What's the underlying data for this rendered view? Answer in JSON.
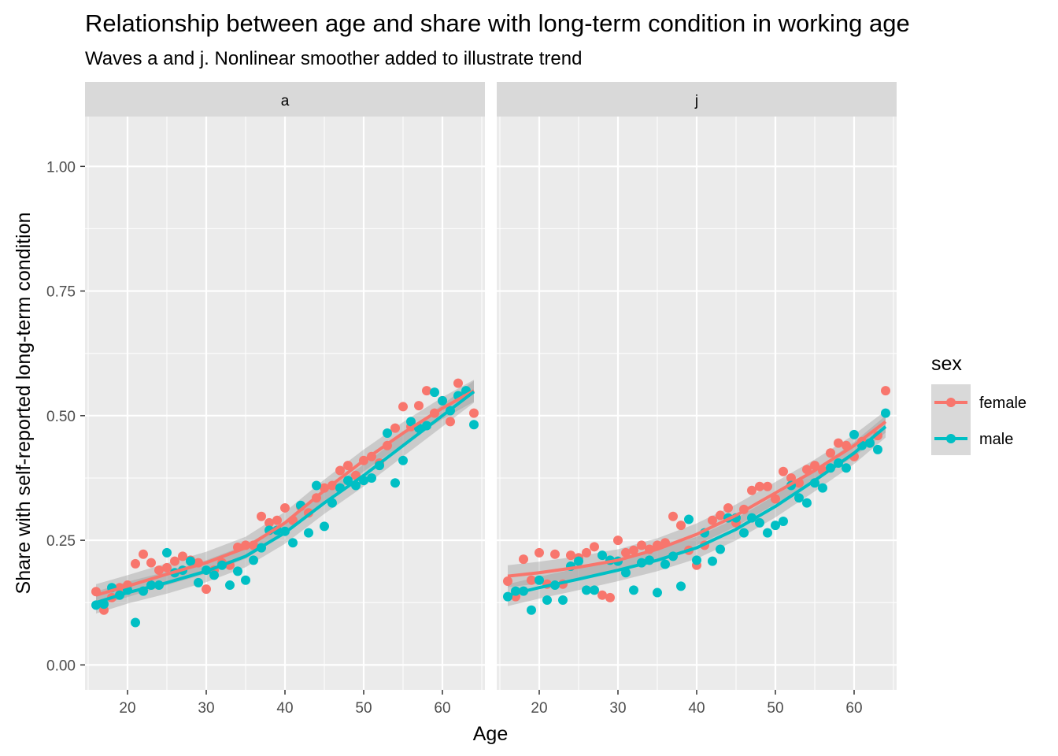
{
  "chart_data": {
    "type": "scatter",
    "title": "Relationship between age and share with long-term condition in working age",
    "subtitle": "Waves a and j. Nonlinear smoother added to illustrate trend",
    "xlabel": "Age",
    "ylabel": "Share with self-reported long-term condition",
    "xlim": [
      14.6,
      65.4
    ],
    "ylim": [
      -0.05,
      1.1
    ],
    "x_ticks": [
      20,
      30,
      40,
      50,
      60
    ],
    "x_tick_labels": [
      "20",
      "30",
      "40",
      "50",
      "60"
    ],
    "y_ticks": [
      0,
      0.25,
      0.5,
      0.75,
      1.0
    ],
    "y_tick_labels": [
      "0.00",
      "0.25",
      "0.50",
      "0.75",
      "1.00"
    ],
    "grid": true,
    "legend": {
      "title": "sex",
      "position": "right",
      "entries": [
        {
          "label": "female",
          "color": "#F8766D"
        },
        {
          "label": "male",
          "color": "#00BFC4"
        }
      ]
    },
    "colors": {
      "female": "#F8766D",
      "male": "#00BFC4",
      "panel_bg": "#EBEBEB",
      "strip_bg": "#D9D9D9",
      "band": "#999999"
    },
    "facets": [
      {
        "label": "a",
        "series": [
          {
            "name": "female",
            "x": [
              16,
              17,
              18,
              19,
              20,
              21,
              22,
              23,
              24,
              25,
              26,
              27,
              28,
              29,
              30,
              31,
              32,
              33,
              34,
              35,
              36,
              37,
              38,
              39,
              40,
              41,
              42,
              43,
              44,
              45,
              46,
              47,
              48,
              49,
              50,
              51,
              52,
              53,
              54,
              55,
              56,
              57,
              58,
              59,
              60,
              61,
              62,
              63,
              64
            ],
            "y": [
              0.147,
              0.11,
              0.135,
              0.155,
              0.16,
              0.203,
              0.222,
              0.205,
              0.19,
              0.195,
              0.208,
              0.218,
              0.21,
              0.205,
              0.152,
              0.19,
              0.205,
              0.2,
              0.236,
              0.24,
              0.24,
              0.298,
              0.285,
              0.29,
              0.315,
              0.29,
              0.318,
              0.305,
              0.335,
              0.355,
              0.36,
              0.39,
              0.4,
              0.38,
              0.41,
              0.418,
              0.405,
              0.44,
              0.475,
              0.518,
              0.478,
              0.52,
              0.55,
              0.505,
              0.53,
              0.488,
              0.565,
              0.545,
              0.505
            ]
          },
          {
            "name": "male",
            "x": [
              16,
              17,
              18,
              19,
              20,
              21,
              22,
              23,
              24,
              25,
              26,
              27,
              28,
              29,
              30,
              31,
              32,
              33,
              34,
              35,
              36,
              37,
              38,
              39,
              40,
              41,
              42,
              43,
              44,
              45,
              46,
              47,
              48,
              49,
              50,
              51,
              52,
              53,
              54,
              55,
              56,
              57,
              58,
              59,
              60,
              61,
              62,
              63,
              64
            ],
            "y": [
              0.12,
              0.122,
              0.155,
              0.14,
              0.15,
              0.085,
              0.148,
              0.16,
              0.16,
              0.225,
              0.185,
              0.19,
              0.208,
              0.165,
              0.19,
              0.18,
              0.2,
              0.16,
              0.188,
              0.17,
              0.21,
              0.235,
              0.27,
              0.27,
              0.268,
              0.245,
              0.32,
              0.265,
              0.36,
              0.278,
              0.325,
              0.355,
              0.37,
              0.36,
              0.37,
              0.375,
              0.4,
              0.465,
              0.365,
              0.41,
              0.488,
              0.475,
              0.48,
              0.547,
              0.53,
              0.51,
              0.54,
              0.55,
              0.482
            ]
          }
        ],
        "smooth": [
          {
            "name": "female",
            "x": [
              16,
              20,
              25,
              30,
              35,
              40,
              45,
              50,
              55,
              60,
              64
            ],
            "y": [
              0.14,
              0.158,
              0.182,
              0.205,
              0.235,
              0.285,
              0.35,
              0.41,
              0.465,
              0.515,
              0.55
            ]
          },
          {
            "name": "male",
            "x": [
              16,
              20,
              25,
              30,
              35,
              40,
              45,
              50,
              55,
              60,
              64
            ],
            "y": [
              0.125,
              0.145,
              0.165,
              0.188,
              0.218,
              0.265,
              0.325,
              0.38,
              0.44,
              0.5,
              0.548
            ]
          }
        ]
      },
      {
        "label": "j",
        "series": [
          {
            "name": "female",
            "x": [
              16,
              17,
              18,
              19,
              20,
              21,
              22,
              23,
              24,
              25,
              26,
              27,
              28,
              29,
              30,
              31,
              32,
              33,
              34,
              35,
              36,
              37,
              38,
              39,
              40,
              41,
              42,
              43,
              44,
              45,
              46,
              47,
              48,
              49,
              50,
              51,
              52,
              53,
              54,
              55,
              56,
              57,
              58,
              59,
              60,
              61,
              62,
              63,
              64
            ],
            "y": [
              0.168,
              0.137,
              0.212,
              0.17,
              0.225,
              0.162,
              0.222,
              0.162,
              0.22,
              0.215,
              0.225,
              0.237,
              0.14,
              0.135,
              0.25,
              0.225,
              0.23,
              0.24,
              0.232,
              0.24,
              0.245,
              0.298,
              0.28,
              0.23,
              0.2,
              0.24,
              0.29,
              0.3,
              0.315,
              0.285,
              0.312,
              0.35,
              0.358,
              0.358,
              0.333,
              0.388,
              0.375,
              0.365,
              0.392,
              0.4,
              0.39,
              0.425,
              0.445,
              0.44,
              0.418,
              0.448,
              0.445,
              0.46,
              0.55
            ]
          },
          {
            "name": "male",
            "x": [
              16,
              17,
              18,
              19,
              20,
              21,
              22,
              23,
              24,
              25,
              26,
              27,
              28,
              29,
              30,
              31,
              32,
              33,
              34,
              35,
              36,
              37,
              38,
              39,
              40,
              41,
              42,
              43,
              44,
              45,
              46,
              47,
              48,
              49,
              50,
              51,
              52,
              53,
              54,
              55,
              56,
              57,
              58,
              59,
              60,
              61,
              62,
              63,
              64
            ],
            "y": [
              0.137,
              0.148,
              0.148,
              0.11,
              0.17,
              0.13,
              0.16,
              0.13,
              0.198,
              0.208,
              0.15,
              0.15,
              0.22,
              0.21,
              0.208,
              0.185,
              0.15,
              0.205,
              0.21,
              0.145,
              0.202,
              0.218,
              0.158,
              0.292,
              0.21,
              0.265,
              0.208,
              0.232,
              0.295,
              0.295,
              0.265,
              0.295,
              0.285,
              0.265,
              0.28,
              0.288,
              0.36,
              0.335,
              0.325,
              0.365,
              0.355,
              0.395,
              0.405,
              0.395,
              0.462,
              0.44,
              0.445,
              0.432,
              0.505
            ]
          }
        ],
        "smooth": [
          {
            "name": "female",
            "x": [
              16,
              20,
              25,
              30,
              35,
              40,
              45,
              50,
              55,
              60,
              64
            ],
            "y": [
              0.178,
              0.185,
              0.196,
              0.21,
              0.232,
              0.262,
              0.3,
              0.345,
              0.39,
              0.44,
              0.488
            ]
          },
          {
            "name": "male",
            "x": [
              16,
              20,
              25,
              30,
              35,
              40,
              45,
              50,
              55,
              60,
              64
            ],
            "y": [
              0.14,
              0.155,
              0.172,
              0.19,
              0.21,
              0.235,
              0.272,
              0.318,
              0.37,
              0.425,
              0.478
            ]
          }
        ]
      }
    ]
  }
}
